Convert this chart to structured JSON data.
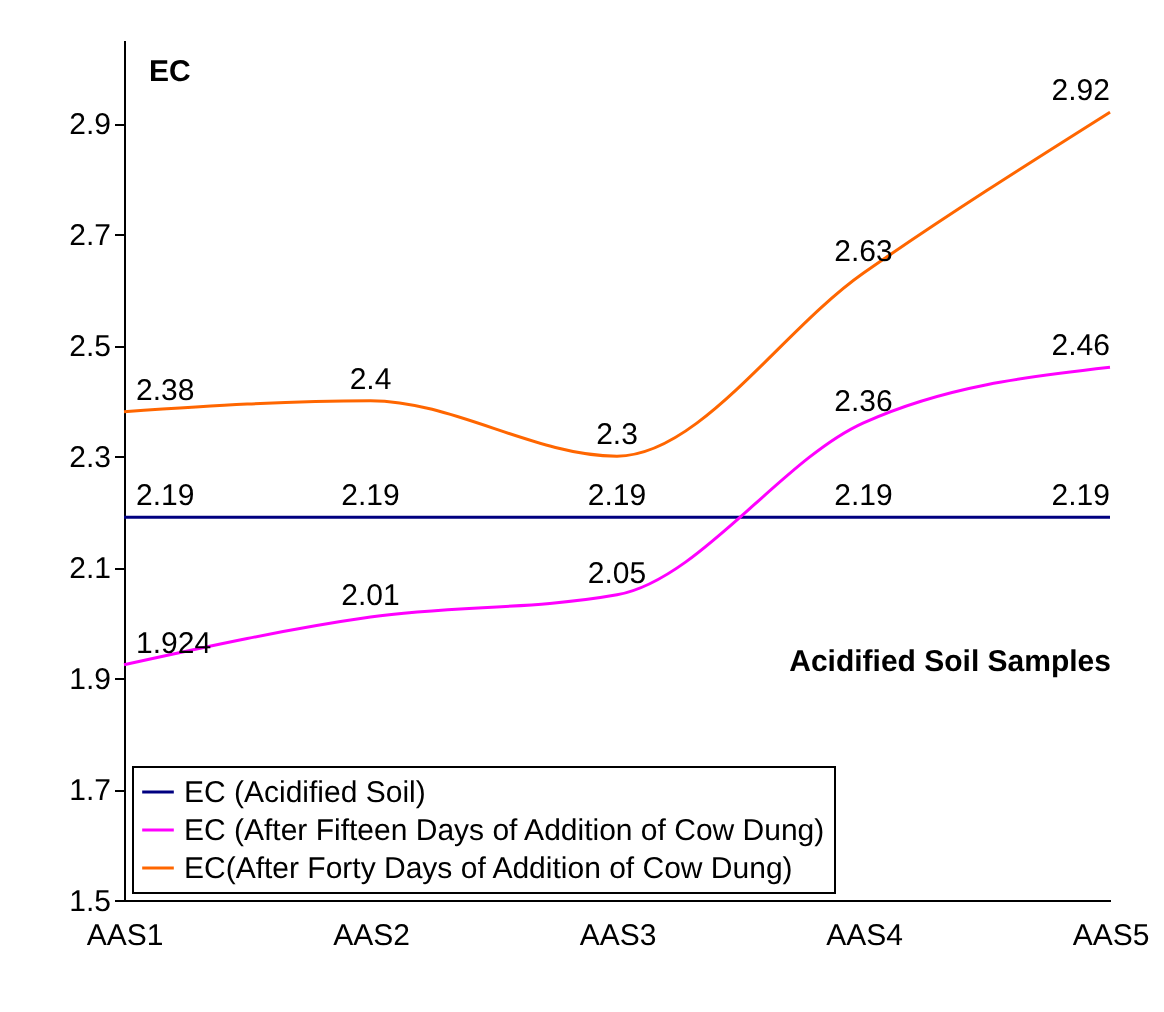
{
  "chart_data": {
    "type": "line",
    "xlabel": "Acidified Soil Samples",
    "ylabel": "EC",
    "categories": [
      "AAS1",
      "AAS2",
      "AAS3",
      "AAS4",
      "AAS5"
    ],
    "series": [
      {
        "name": "EC (Acidified Soil)",
        "color": "#000080",
        "values": [
          2.19,
          2.19,
          2.19,
          2.19,
          2.19
        ]
      },
      {
        "name": "EC (After Fifteen Days of Addition of Cow Dung)",
        "color": "#ff00ff",
        "values": [
          1.924,
          2.01,
          2.05,
          2.36,
          2.46
        ]
      },
      {
        "name": "EC(After Forty Days of Addition of Cow Dung)",
        "color": "#ff6600",
        "values": [
          2.38,
          2.4,
          2.3,
          2.63,
          2.92
        ]
      }
    ],
    "ylim": [
      1.5,
      3.05
    ],
    "yticks": [
      1.5,
      1.7,
      1.9,
      2.1,
      2.3,
      2.5,
      2.7,
      2.9
    ],
    "data_labels": true,
    "legend": "bottom left",
    "grid": false,
    "marker": "none",
    "line_style": "solid"
  }
}
